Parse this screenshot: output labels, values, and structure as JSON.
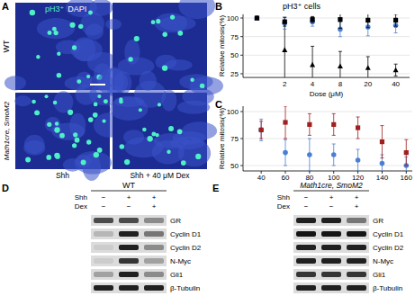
{
  "panel_letters": [
    "A",
    "B",
    "C",
    "D",
    "E"
  ],
  "panel_a": {
    "stain_labels": [
      "pH3⁺",
      "DAPI"
    ],
    "row_labels": [
      "WT",
      "Math1cre, SmoM2"
    ],
    "column_labels": [
      "Shh",
      "Shh + 40 μM Dex"
    ]
  },
  "chart_data": [
    {
      "type": "scatter",
      "title": "pH3⁺ cells",
      "y_label": "Relative mitosis(%)",
      "x_label": "Dose (μM)",
      "categories": [
        null,
        "2",
        "4",
        "8",
        "20",
        "40"
      ],
      "ylim": [
        20,
        105
      ],
      "yticks": [
        25,
        50,
        75,
        100
      ],
      "series": [
        {
          "color": "#000000",
          "marker": "triangle",
          "values": [
            100,
            57,
            37,
            35,
            33,
            30
          ],
          "errors": [
            0,
            40,
            25,
            20,
            15,
            8
          ]
        },
        {
          "color": "#4a7fd4",
          "marker": "circle",
          "values": [
            100,
            93,
            95,
            85,
            88,
            90
          ],
          "errors": [
            0,
            8,
            6,
            10,
            12,
            10
          ]
        },
        {
          "color": "#000000",
          "marker": "square",
          "values": [
            100,
            95,
            98,
            98,
            97,
            97
          ],
          "errors": [
            0,
            6,
            4,
            12,
            10,
            8
          ]
        }
      ]
    },
    {
      "type": "scatter",
      "y_label": "Relative mitosis(%)",
      "x": [
        40,
        60,
        80,
        100,
        120,
        140,
        160
      ],
      "xlim": [
        25,
        165
      ],
      "xticks": [
        40,
        60,
        80,
        100,
        120,
        140,
        160
      ],
      "ylim": [
        45,
        105
      ],
      "yticks": [
        50,
        75,
        100
      ],
      "series": [
        {
          "color": "#4a7fd4",
          "marker": "circle",
          "values": [
            83,
            62,
            60,
            60,
            55,
            52,
            50
          ],
          "errors": [
            10,
            12,
            15,
            10,
            10,
            8,
            8
          ]
        },
        {
          "color": "#a02020",
          "marker": "square",
          "values": [
            83,
            90,
            88,
            88,
            85,
            72,
            62
          ],
          "errors": [
            8,
            15,
            10,
            10,
            10,
            15,
            12
          ]
        }
      ]
    }
  ],
  "panel_d": {
    "title": "WT",
    "conditions": [
      {
        "name": "Shh",
        "signs": [
          "−",
          "+",
          "+"
        ]
      },
      {
        "name": "Dex",
        "signs": [
          "−",
          "−",
          "+"
        ]
      }
    ],
    "blots": [
      {
        "protein": "GR",
        "intensities": [
          0.7,
          0.7,
          0.4
        ]
      },
      {
        "protein": "Cyclin D1",
        "intensities": [
          0.2,
          0.9,
          0.5
        ]
      },
      {
        "protein": "Cyclin D2",
        "intensities": [
          0.1,
          0.9,
          0.4
        ]
      },
      {
        "protein": "N-Myc",
        "intensities": [
          0.1,
          0.8,
          0.3
        ]
      },
      {
        "protein": "Gli1",
        "intensities": [
          0.3,
          0.9,
          0.4
        ]
      },
      {
        "protein": "β-Tubulin",
        "intensities": [
          0.9,
          0.9,
          0.9
        ]
      }
    ]
  },
  "panel_e": {
    "title": "Math1cre, SmoM2",
    "conditions": [
      {
        "name": "Shh",
        "signs": [
          "−",
          "+",
          "+"
        ]
      },
      {
        "name": "Dex",
        "signs": [
          "−",
          "−",
          "+"
        ]
      }
    ],
    "blots": [
      {
        "protein": "GR",
        "intensities": [
          0.9,
          0.9,
          0.5
        ]
      },
      {
        "protein": "Cyclin D1",
        "intensities": [
          0.95,
          0.95,
          0.95
        ]
      },
      {
        "protein": "Cyclin D2",
        "intensities": [
          0.9,
          0.9,
          0.9
        ]
      },
      {
        "protein": "N-Myc",
        "intensities": [
          0.9,
          0.9,
          0.9
        ]
      },
      {
        "protein": "Gli1",
        "intensities": [
          0.8,
          0.8,
          0.8
        ]
      },
      {
        "protein": "β-Tubulin",
        "intensities": [
          0.9,
          0.9,
          0.9
        ]
      }
    ]
  }
}
